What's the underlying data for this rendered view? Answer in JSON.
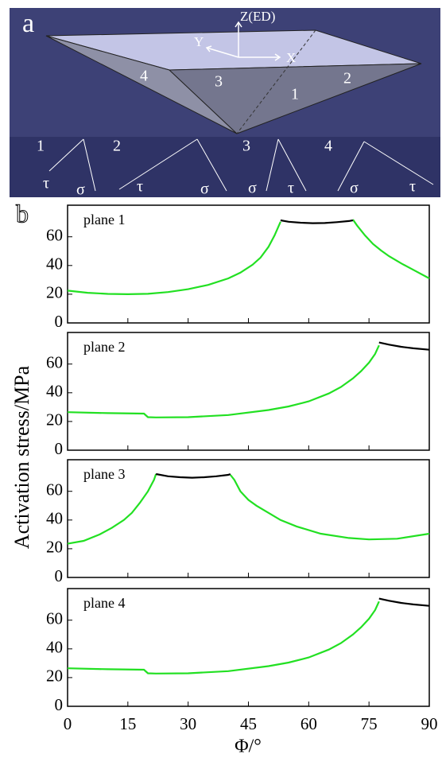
{
  "panel_a": {
    "letter": "a",
    "axis_labels": [
      "Z(ED)",
      "Y",
      "X"
    ],
    "face_labels": [
      "4",
      "3",
      "1",
      "2"
    ],
    "plane_labels": [
      "1",
      "2",
      "3",
      "4"
    ],
    "stress_labels": [
      "τ",
      "σ",
      "τ",
      "σ",
      "σ",
      "τ",
      "σ",
      "τ"
    ]
  },
  "panel_b": {
    "letter": "b",
    "xlabel": "Φ/°",
    "ylabel": "Activation stress/MPa"
  },
  "chart_data": [
    {
      "type": "line",
      "title": "plane 1",
      "xlim": [
        0,
        90
      ],
      "xticks": [
        0,
        15,
        30,
        45,
        60,
        75,
        90
      ],
      "ylim": [
        0,
        82
      ],
      "yticks": [
        0,
        20,
        40,
        60
      ],
      "series": [
        {
          "color": "#22e022",
          "x": [
            0,
            5,
            10,
            15,
            20,
            25,
            30,
            35,
            40,
            43,
            46,
            48,
            50,
            51.5,
            53,
            62,
            71,
            72,
            74,
            76,
            78,
            80,
            83,
            86,
            90
          ],
          "values": [
            22.5,
            21,
            20.2,
            20,
            20.3,
            21.5,
            23.5,
            26.5,
            31,
            35,
            40.5,
            45.5,
            53,
            61,
            70.5,
            null,
            72,
            68,
            61,
            55,
            50.5,
            46.5,
            41.5,
            37,
            31
          ]
        },
        {
          "color": "#000000",
          "x": [
            53,
            55,
            58,
            61,
            64,
            67,
            70,
            71
          ],
          "values": [
            71.5,
            70.5,
            69.8,
            69.5,
            69.6,
            70.2,
            71,
            71.5
          ]
        }
      ]
    },
    {
      "type": "line",
      "title": "plane 2",
      "xlim": [
        0,
        90
      ],
      "xticks": [
        0,
        15,
        30,
        45,
        60,
        75,
        90
      ],
      "ylim": [
        0,
        82
      ],
      "yticks": [
        0,
        20,
        40,
        60
      ],
      "series": [
        {
          "color": "#22e022",
          "x": [
            0,
            10,
            19,
            20,
            22,
            30,
            40,
            50,
            55,
            60,
            65,
            68,
            71,
            73,
            75,
            76.5,
            77.5
          ],
          "values": [
            26.5,
            25.8,
            25.5,
            23,
            22.8,
            23,
            24.5,
            28,
            30.5,
            34,
            39.5,
            44,
            50,
            55,
            61,
            67,
            73
          ]
        },
        {
          "color": "#000000",
          "x": [
            77.5,
            80,
            83,
            86,
            90
          ],
          "values": [
            75,
            73.5,
            72,
            71,
            70
          ]
        }
      ]
    },
    {
      "type": "line",
      "title": "plane 3",
      "xlim": [
        0,
        90
      ],
      "xticks": [
        0,
        15,
        30,
        45,
        60,
        75,
        90
      ],
      "ylim": [
        0,
        82
      ],
      "yticks": [
        0,
        20,
        40,
        60
      ],
      "series": [
        {
          "color": "#22e022",
          "x": [
            0,
            4,
            8,
            11,
            14,
            16,
            18,
            20,
            21.5,
            22,
            31,
            40.5,
            41.5,
            43,
            45,
            47,
            50,
            53,
            57,
            63,
            70,
            75,
            82,
            90
          ],
          "values": [
            23.5,
            25.5,
            30,
            34.5,
            40,
            45,
            52,
            60,
            68,
            72,
            null,
            71.5,
            68,
            60,
            54,
            50,
            45,
            40,
            35.5,
            30.5,
            27.5,
            26.5,
            27,
            30.5
          ]
        },
        {
          "color": "#000000",
          "x": [
            22,
            25,
            28,
            31,
            34,
            37,
            40,
            40.5
          ],
          "values": [
            72,
            70.5,
            69.8,
            69.5,
            69.8,
            70.5,
            71.5,
            72
          ]
        }
      ]
    },
    {
      "type": "line",
      "title": "plane 4",
      "xlim": [
        0,
        90
      ],
      "xticks": [
        0,
        15,
        30,
        45,
        60,
        75,
        90
      ],
      "ylim": [
        0,
        82
      ],
      "yticks": [
        0,
        20,
        40,
        60
      ],
      "series": [
        {
          "color": "#22e022",
          "x": [
            0,
            10,
            19,
            20,
            22,
            30,
            40,
            50,
            55,
            60,
            65,
            68,
            71,
            73,
            75,
            76.5,
            77.5
          ],
          "values": [
            26.5,
            25.8,
            25.5,
            23,
            22.8,
            23,
            24.5,
            28,
            30.5,
            34,
            39.5,
            44,
            50,
            55,
            61,
            67,
            73
          ]
        },
        {
          "color": "#000000",
          "x": [
            77.5,
            80,
            83,
            86,
            90
          ],
          "values": [
            75,
            73.5,
            72,
            71,
            70
          ]
        }
      ]
    }
  ]
}
